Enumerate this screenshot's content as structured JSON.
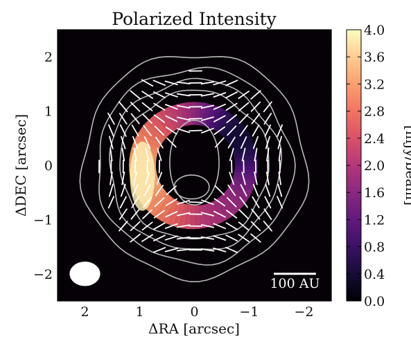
{
  "chart_data": {
    "type": "heatmap",
    "title": "Polarized Intensity",
    "xlabel": "ΔRA [arcsec]",
    "ylabel": "ΔDEC [arcsec]",
    "xlim": [
      2.5,
      -2.5
    ],
    "ylim": [
      -2.5,
      2.5
    ],
    "x_ticks": [
      2,
      1,
      0,
      -1,
      -2
    ],
    "x_tick_labels": [
      "2",
      "1",
      "0",
      "−1",
      "−2"
    ],
    "y_ticks": [
      2,
      1,
      0,
      -1,
      -2
    ],
    "y_tick_labels": [
      "2",
      "1",
      "0",
      "−1",
      "−2"
    ],
    "grid": false,
    "colorbar": {
      "label": "[mJy/beam]",
      "colormap": "magma",
      "range": [
        0.0,
        4.0
      ],
      "ticks": [
        0.0,
        0.4,
        0.8,
        1.2,
        1.6,
        2.0,
        2.4,
        2.8,
        3.2,
        3.6,
        4.0
      ],
      "tick_labels": [
        "0.0",
        "0.4",
        "0.8",
        "1.2",
        "1.6",
        "2.0",
        "2.4",
        "2.8",
        "3.2",
        "3.6",
        "4.0"
      ]
    },
    "disk_emission": {
      "ring_radius_arcsec": 0.95,
      "ring_width_arcsec": 0.38,
      "peak_mjy_per_beam": 4.0,
      "peak_position_arcsec": [
        0.95,
        -0.2
      ],
      "faint_sector_position_arcsec": [
        -1.0,
        0.65
      ]
    },
    "contours": {
      "color": "#b9b9b9",
      "outer_radii_arcsec": [
        2.05,
        1.78,
        1.56,
        1.36
      ],
      "inner_hole_arcsec": [
        [
          0.0,
          0.05,
          0.45,
          0.78
        ],
        [
          0.05,
          -0.4,
          0.32,
          0.22
        ]
      ]
    },
    "polarization_vectors": {
      "color": "#ffffff",
      "pattern": "azimuthal",
      "region_arcsec": [
        0.55,
        1.75
      ]
    },
    "beam": {
      "position_arcsec": [
        2.0,
        -2.0
      ],
      "major_arcsec": 0.56,
      "minor_arcsec": 0.45,
      "color": "#ffffff"
    },
    "scale_bar": {
      "label": "100 AU",
      "start_arcsec": -1.45,
      "end_arcsec": -2.22,
      "y_arcsec": -2.0,
      "color": "#ffffff"
    },
    "background_color": "#060107"
  }
}
